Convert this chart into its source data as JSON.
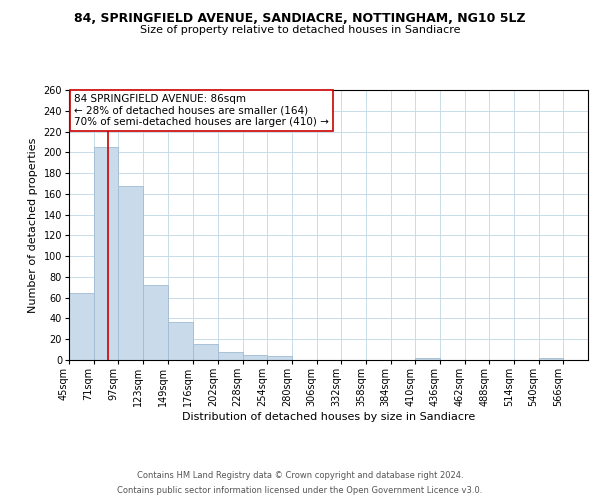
{
  "title": "84, SPRINGFIELD AVENUE, SANDIACRE, NOTTINGHAM, NG10 5LZ",
  "subtitle": "Size of property relative to detached houses in Sandiacre",
  "xlabel": "Distribution of detached houses by size in Sandiacre",
  "ylabel": "Number of detached properties",
  "bin_labels": [
    "45sqm",
    "71sqm",
    "97sqm",
    "123sqm",
    "149sqm",
    "176sqm",
    "202sqm",
    "228sqm",
    "254sqm",
    "280sqm",
    "306sqm",
    "332sqm",
    "358sqm",
    "384sqm",
    "410sqm",
    "436sqm",
    "462sqm",
    "488sqm",
    "514sqm",
    "540sqm",
    "566sqm"
  ],
  "bar_heights": [
    65,
    205,
    168,
    72,
    37,
    15,
    8,
    5,
    4,
    0,
    0,
    0,
    0,
    0,
    2,
    0,
    0,
    0,
    0,
    2,
    0
  ],
  "bar_color": "#c9daea",
  "bar_edgecolor": "#a0bcd4",
  "vline_x": 86,
  "vline_color": "#cc0000",
  "annotation_title": "84 SPRINGFIELD AVENUE: 86sqm",
  "annotation_line1": "← 28% of detached houses are smaller (164)",
  "annotation_line2": "70% of semi-detached houses are larger (410) →",
  "annotation_box_edgecolor": "#cc0000",
  "ylim": [
    0,
    260
  ],
  "yticks": [
    0,
    20,
    40,
    60,
    80,
    100,
    120,
    140,
    160,
    180,
    200,
    220,
    240,
    260
  ],
  "bin_edges": [
    45,
    71,
    97,
    123,
    149,
    176,
    202,
    228,
    254,
    280,
    306,
    332,
    358,
    384,
    410,
    436,
    462,
    488,
    514,
    540,
    566,
    592
  ],
  "footer_line1": "Contains HM Land Registry data © Crown copyright and database right 2024.",
  "footer_line2": "Contains public sector information licensed under the Open Government Licence v3.0.",
  "background_color": "#ffffff",
  "grid_color": "#c8dce8",
  "title_fontsize": 9,
  "subtitle_fontsize": 8,
  "ylabel_fontsize": 8,
  "xlabel_fontsize": 8,
  "tick_fontsize": 7,
  "annotation_fontsize": 7.5,
  "footer_fontsize": 6
}
